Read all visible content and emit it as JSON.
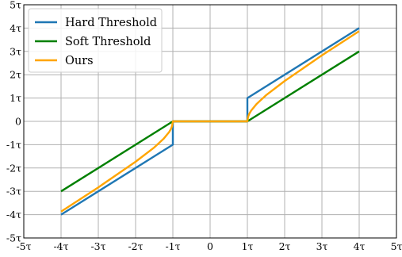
{
  "chart_data": {
    "type": "line",
    "title": "",
    "xlabel": "",
    "ylabel": "",
    "xlim": [
      -5,
      5
    ],
    "ylim": [
      -5,
      5
    ],
    "grid": true,
    "legend_position": "top-left",
    "x_ticks": [
      -5,
      -4,
      -3,
      -2,
      -1,
      0,
      1,
      2,
      3,
      4,
      5
    ],
    "y_ticks": [
      -5,
      -4,
      -3,
      -2,
      -1,
      0,
      1,
      2,
      3,
      4,
      5
    ],
    "x_tick_labels": [
      "-5τ",
      "-4τ",
      "-3τ",
      "-2τ",
      "-1τ",
      "0",
      "1τ",
      "2τ",
      "3τ",
      "4τ",
      "5τ"
    ],
    "y_tick_labels": [
      "-5τ",
      "-4τ",
      "-3τ",
      "-2τ",
      "-1τ",
      "0",
      "1τ",
      "2τ",
      "3τ",
      "4τ",
      "5τ"
    ],
    "series": [
      {
        "name": "Hard Threshold",
        "color": "#1f77b4",
        "x": [
          -4,
          -1,
          -1,
          1,
          1,
          4
        ],
        "y": [
          -4,
          -1,
          0,
          0,
          1,
          4
        ]
      },
      {
        "name": "Soft Threshold",
        "color": "#008000",
        "x": [
          -4,
          -1,
          1,
          4
        ],
        "y": [
          -3,
          0,
          0,
          3
        ]
      },
      {
        "name": "Ours",
        "color": "#ffa500",
        "x": [
          -4,
          -3,
          -2,
          -1.5,
          -1.25,
          -1.1,
          -1.05,
          -1.02,
          -1,
          1,
          1.02,
          1.05,
          1.1,
          1.25,
          1.5,
          2,
          3,
          4
        ],
        "y": [
          -3.87,
          -2.83,
          -1.73,
          -1.12,
          -0.75,
          -0.46,
          -0.32,
          -0.2,
          0,
          0,
          0.2,
          0.32,
          0.46,
          0.75,
          1.12,
          1.73,
          2.83,
          3.87
        ]
      }
    ]
  }
}
